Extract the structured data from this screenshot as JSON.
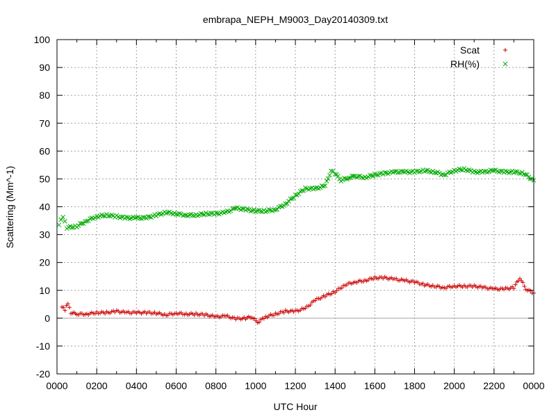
{
  "chart_data": {
    "type": "scatter",
    "title": "embrapa_NEPH_M9003_Day20140309.txt",
    "xlabel": "UTC Hour",
    "ylabel": "Scattering (Mm^-1)",
    "xlim": [
      0,
      24
    ],
    "ylim": [
      -20,
      100
    ],
    "x_ticks": [
      {
        "value": 0,
        "label": "0000"
      },
      {
        "value": 2,
        "label": "0200"
      },
      {
        "value": 4,
        "label": "0400"
      },
      {
        "value": 6,
        "label": "0600"
      },
      {
        "value": 8,
        "label": "0800"
      },
      {
        "value": 10,
        "label": "1000"
      },
      {
        "value": 12,
        "label": "1200"
      },
      {
        "value": 14,
        "label": "1400"
      },
      {
        "value": 16,
        "label": "1600"
      },
      {
        "value": 18,
        "label": "1800"
      },
      {
        "value": 20,
        "label": "2000"
      },
      {
        "value": 22,
        "label": "2200"
      },
      {
        "value": 24,
        "label": "0000"
      }
    ],
    "y_ticks": [
      -20,
      -10,
      0,
      10,
      20,
      30,
      40,
      50,
      60,
      70,
      80,
      90,
      100
    ],
    "grid": true,
    "zero_line": true,
    "legend_position": "top-right",
    "series": [
      {
        "name": "Scat",
        "marker": "plus",
        "color": "#cc0000",
        "points": [
          [
            0.25,
            4
          ],
          [
            0.4,
            3
          ],
          [
            0.55,
            5.5
          ],
          [
            0.7,
            2
          ],
          [
            1.0,
            1.5
          ],
          [
            1.5,
            1.5
          ],
          [
            2.0,
            2
          ],
          [
            2.5,
            2
          ],
          [
            3.0,
            2.5
          ],
          [
            3.5,
            2
          ],
          [
            4.0,
            2
          ],
          [
            4.5,
            2
          ],
          [
            5.0,
            1.8
          ],
          [
            5.5,
            1.2
          ],
          [
            6.0,
            1.8
          ],
          [
            6.5,
            1.5
          ],
          [
            7.0,
            1.5
          ],
          [
            7.5,
            1.2
          ],
          [
            8.0,
            0.5
          ],
          [
            8.5,
            0.8
          ],
          [
            9.0,
            -0.2
          ],
          [
            9.5,
            0
          ],
          [
            9.8,
            0.5
          ],
          [
            10.1,
            -1.5
          ],
          [
            10.5,
            0.5
          ],
          [
            11.0,
            1.5
          ],
          [
            11.5,
            2.5
          ],
          [
            12.0,
            2.5
          ],
          [
            12.5,
            3.5
          ],
          [
            13.0,
            6.5
          ],
          [
            13.5,
            8
          ],
          [
            14.0,
            9.5
          ],
          [
            14.5,
            12
          ],
          [
            15.0,
            13
          ],
          [
            15.5,
            13.5
          ],
          [
            16.0,
            14.5
          ],
          [
            16.5,
            14.5
          ],
          [
            17.0,
            14
          ],
          [
            17.5,
            13.5
          ],
          [
            18.0,
            13
          ],
          [
            18.5,
            12
          ],
          [
            19.0,
            11.5
          ],
          [
            19.5,
            11
          ],
          [
            20.0,
            11.5
          ],
          [
            20.5,
            11.5
          ],
          [
            21.0,
            11.5
          ],
          [
            21.5,
            11
          ],
          [
            22.0,
            10.5
          ],
          [
            22.5,
            10.5
          ],
          [
            23.0,
            11
          ],
          [
            23.3,
            14.5
          ],
          [
            23.6,
            10.5
          ],
          [
            24.0,
            9
          ]
        ]
      },
      {
        "name": "RH(%)",
        "marker": "cross",
        "color": "#00aa00",
        "points": [
          [
            0.1,
            33.5
          ],
          [
            0.3,
            36.5
          ],
          [
            0.5,
            32.5
          ],
          [
            1.0,
            33
          ],
          [
            1.5,
            35
          ],
          [
            2.0,
            36.5
          ],
          [
            2.5,
            37
          ],
          [
            3.0,
            36.5
          ],
          [
            3.5,
            36
          ],
          [
            4.0,
            36
          ],
          [
            4.5,
            36
          ],
          [
            5.0,
            37
          ],
          [
            5.5,
            38
          ],
          [
            6.0,
            37.5
          ],
          [
            6.5,
            37
          ],
          [
            7.0,
            37
          ],
          [
            7.5,
            37.5
          ],
          [
            8.0,
            37.5
          ],
          [
            8.5,
            38
          ],
          [
            9.0,
            39.5
          ],
          [
            9.5,
            39
          ],
          [
            10.0,
            38.5
          ],
          [
            10.5,
            38.5
          ],
          [
            11.0,
            39
          ],
          [
            11.5,
            41
          ],
          [
            12.0,
            44
          ],
          [
            12.5,
            46.5
          ],
          [
            13.0,
            46.5
          ],
          [
            13.5,
            47.5
          ],
          [
            13.8,
            53
          ],
          [
            14.0,
            52
          ],
          [
            14.3,
            49.5
          ],
          [
            14.7,
            50.5
          ],
          [
            15.0,
            51
          ],
          [
            15.5,
            50.5
          ],
          [
            16.0,
            51.5
          ],
          [
            16.5,
            52
          ],
          [
            17.0,
            52.5
          ],
          [
            17.5,
            52.5
          ],
          [
            18.0,
            52.5
          ],
          [
            18.5,
            53
          ],
          [
            19.0,
            52.5
          ],
          [
            19.5,
            51.5
          ],
          [
            20.0,
            53
          ],
          [
            20.5,
            53.5
          ],
          [
            21.0,
            52.5
          ],
          [
            21.5,
            52.5
          ],
          [
            22.0,
            53
          ],
          [
            22.5,
            52.5
          ],
          [
            23.0,
            52.5
          ],
          [
            23.5,
            52
          ],
          [
            24.0,
            49.5
          ]
        ]
      }
    ]
  }
}
